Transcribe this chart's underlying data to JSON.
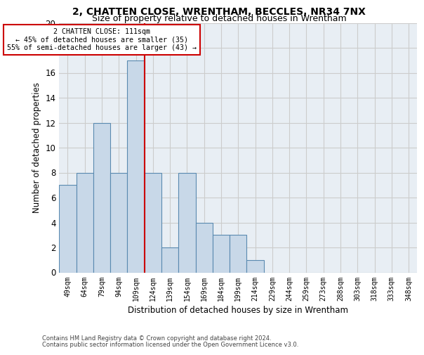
{
  "title": "2, CHATTEN CLOSE, WRENTHAM, BECCLES, NR34 7NX",
  "subtitle": "Size of property relative to detached houses in Wrentham",
  "xlabel": "Distribution of detached houses by size in Wrentham",
  "ylabel": "Number of detached properties",
  "bar_categories": [
    "49sqm",
    "64sqm",
    "79sqm",
    "94sqm",
    "109sqm",
    "124sqm",
    "139sqm",
    "154sqm",
    "169sqm",
    "184sqm",
    "199sqm",
    "214sqm",
    "229sqm",
    "244sqm",
    "259sqm",
    "273sqm",
    "288sqm",
    "303sqm",
    "318sqm",
    "333sqm",
    "348sqm"
  ],
  "bar_values": [
    7,
    8,
    12,
    8,
    17,
    8,
    2,
    8,
    4,
    3,
    3,
    1,
    0,
    0,
    0,
    0,
    0,
    0,
    0,
    0,
    0
  ],
  "bar_color": "#c8d8e8",
  "bar_edgecolor": "#5a8ab0",
  "grid_color": "#cccccc",
  "red_line_index": 4.5,
  "annotation_text": "2 CHATTEN CLOSE: 111sqm\n← 45% of detached houses are smaller (35)\n55% of semi-detached houses are larger (43) →",
  "annotation_box_color": "#ffffff",
  "annotation_box_edgecolor": "#cc0000",
  "ylim": [
    0,
    20
  ],
  "yticks": [
    0,
    2,
    4,
    6,
    8,
    10,
    12,
    14,
    16,
    18,
    20
  ],
  "footer_line1": "Contains HM Land Registry data © Crown copyright and database right 2024.",
  "footer_line2": "Contains public sector information licensed under the Open Government Licence v3.0.",
  "bg_color": "#e8eef4",
  "title_fontsize": 10,
  "subtitle_fontsize": 9
}
